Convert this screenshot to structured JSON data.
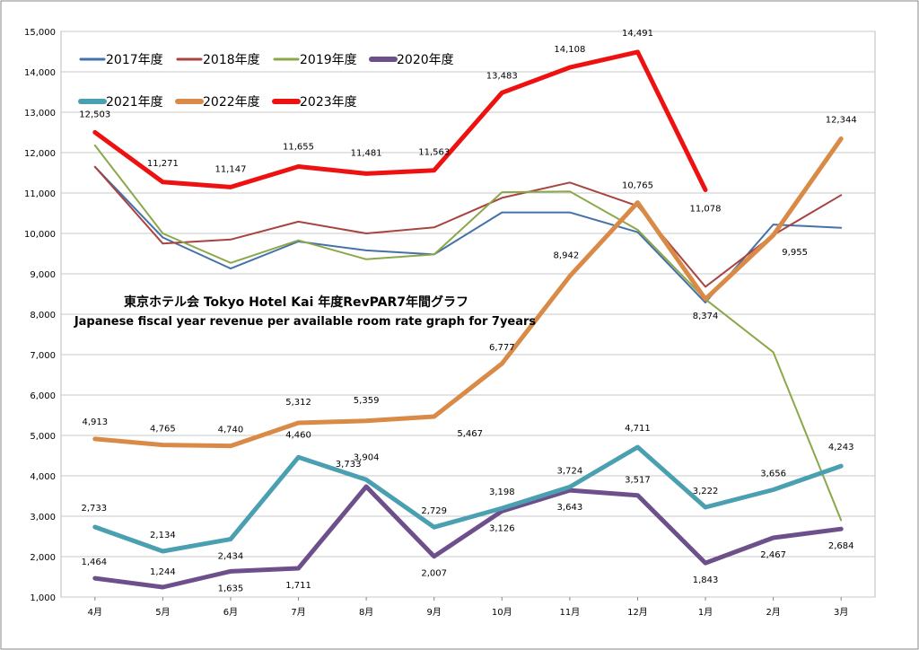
{
  "chart_data": {
    "type": "line",
    "title": "東京ホテル会 Tokyo Hotel Kai 年度RevPAR7年間グラフ",
    "subtitle": "Japanese fiscal year revenue per available room rate graph for 7years",
    "categories": [
      "4月",
      "5月",
      "6月",
      "7月",
      "8月",
      "9月",
      "10月",
      "11月",
      "12月",
      "1月",
      "2月",
      "3月"
    ],
    "ylim": [
      1000,
      15000
    ],
    "yticks": [
      1000,
      2000,
      3000,
      4000,
      5000,
      6000,
      7000,
      8000,
      9000,
      10000,
      11000,
      12000,
      13000,
      14000,
      15000
    ],
    "ytick_labels": [
      "1,000",
      "2,000",
      "3,000",
      "4,000",
      "5,000",
      "6,000",
      "7,000",
      "8,000",
      "9,000",
      "10,000",
      "11,000",
      "12,000",
      "13,000",
      "14,000",
      "15,000"
    ],
    "grid": true,
    "legend_position": "top-left",
    "series": [
      {
        "name": "2017年度",
        "color": "#4472a8",
        "values": [
          11650,
          9900,
          9130,
          9800,
          9580,
          9480,
          10520,
          10520,
          10030,
          8290,
          10220,
          10140
        ],
        "labels": null
      },
      {
        "name": "2018年度",
        "color": "#a84440",
        "values": [
          11650,
          9750,
          9850,
          10290,
          10000,
          10150,
          10880,
          11260,
          10680,
          8680,
          9960,
          10950
        ],
        "labels": null
      },
      {
        "name": "2019年度",
        "color": "#8aa84a",
        "values": [
          12180,
          10000,
          9270,
          9830,
          9360,
          9480,
          11020,
          11040,
          10090,
          8370,
          7060,
          2900
        ],
        "labels": null
      },
      {
        "name": "2020年度",
        "color": "#6d4f8c",
        "values": [
          1464,
          1244,
          1635,
          1711,
          3733,
          2007,
          3126,
          3643,
          3517,
          1843,
          2467,
          2684
        ],
        "labels": [
          "1,464",
          "1,244",
          "1,635",
          "1,711",
          "3,733",
          "2,007",
          "3,126",
          "3,643",
          "3,517",
          "1,843",
          "2,467",
          "2,684"
        ]
      },
      {
        "name": "2021年度",
        "color": "#4aa0b0",
        "values": [
          2733,
          2134,
          2434,
          4460,
          3904,
          2729,
          3198,
          3724,
          4711,
          3222,
          3656,
          4243
        ],
        "labels": [
          "2,733",
          "2,134",
          "2,434",
          "4,460",
          "3,904",
          "2,729",
          "3,198",
          "3,724",
          "4,711",
          "3,222",
          "3,656",
          "4,243"
        ]
      },
      {
        "name": "2022年度",
        "color": "#d98a46",
        "values": [
          4913,
          4765,
          4740,
          5312,
          5359,
          5467,
          6777,
          8942,
          10765,
          8374,
          9955,
          12344
        ],
        "labels": [
          "4,913",
          "4,765",
          "4,740",
          "5,312",
          "5,359",
          "5,467",
          "6,777",
          "8,942",
          "10,765",
          "8,374",
          "9,955",
          "12,344"
        ]
      },
      {
        "name": "2023年度",
        "color": "#ee1111",
        "values": [
          12503,
          11271,
          11147,
          11655,
          11481,
          11563,
          13483,
          14108,
          14491,
          11078,
          null,
          null
        ],
        "labels": [
          "12,503",
          "11,271",
          "11,147",
          "11,655",
          "11,481",
          "11,563",
          "13,483",
          "14,108",
          "14,491",
          "11,078",
          null,
          null
        ]
      }
    ]
  }
}
